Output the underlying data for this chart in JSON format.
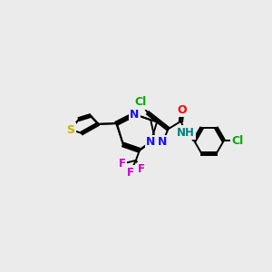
{
  "bg_color": "#ebebeb",
  "bond_color": "#000000",
  "figsize": [
    3.0,
    3.0
  ],
  "dpi": 100,
  "colors": {
    "N": "#1a0dff",
    "S": "#c8b400",
    "O": "#ff0000",
    "Cl": "#00aa00",
    "F": "#cc00cc",
    "NH": "#008080"
  }
}
